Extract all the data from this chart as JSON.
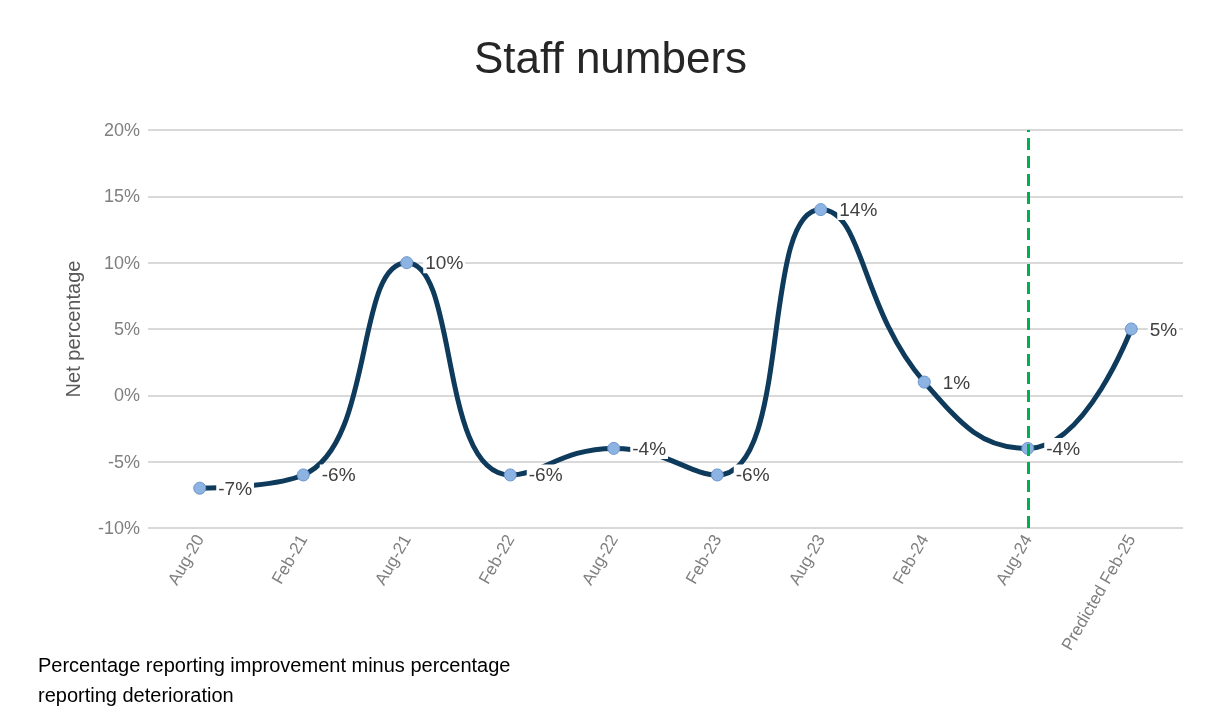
{
  "chart_data": {
    "type": "line",
    "title": "Staff numbers",
    "ylabel": "Net percentage",
    "categories": [
      "Aug-20",
      "Feb-21",
      "Aug-21",
      "Feb-22",
      "Aug-22",
      "Feb-23",
      "Aug-23",
      "Feb-24",
      "Aug-24",
      "Predicted Feb-25"
    ],
    "series": [
      {
        "color": "#0e3a5c",
        "values": [
          -7,
          -6,
          10,
          -6,
          -4,
          -6,
          14,
          1,
          -4,
          5
        ],
        "value_labels": [
          "-7%",
          "-6%",
          "10%",
          "-6%",
          "-4%",
          "-6%",
          "14%",
          "1%",
          "-4%",
          "5%"
        ]
      }
    ],
    "ylim": [
      -10,
      20
    ],
    "yticks": [
      {
        "value": -10,
        "label": "-10%"
      },
      {
        "value": -5,
        "label": "-5%"
      },
      {
        "value": 0,
        "label": "0%"
      },
      {
        "value": 5,
        "label": "5%"
      },
      {
        "value": 10,
        "label": "10%"
      },
      {
        "value": 15,
        "label": "15%"
      },
      {
        "value": 20,
        "label": "20%"
      }
    ],
    "grid": "y",
    "marker": "circle",
    "line_style": "solid",
    "ref_lines": [
      {
        "axis": "x",
        "value": "Aug-24",
        "color": "#00b050",
        "line_style": "dashed"
      }
    ],
    "annotations": [
      "Percentage reporting improvement minus percentage reporting deterioration"
    ]
  }
}
